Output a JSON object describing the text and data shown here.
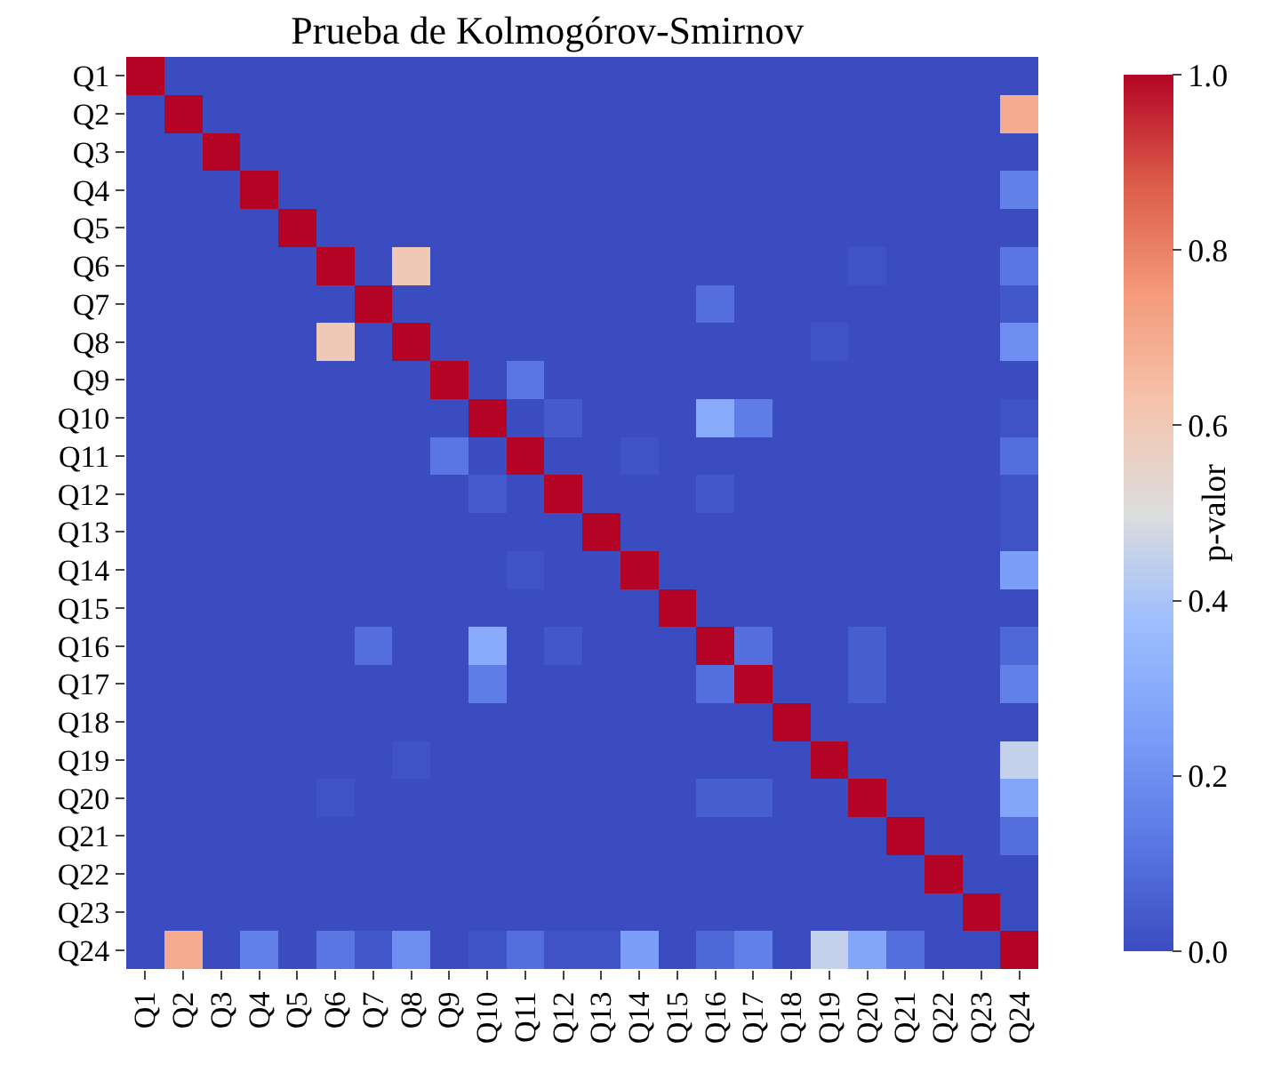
{
  "chart_data": {
    "type": "heatmap",
    "title": "Prueba de Kolmogórov-Smirnov",
    "clabel": "p-valor",
    "categories": [
      "Q1",
      "Q2",
      "Q3",
      "Q4",
      "Q5",
      "Q6",
      "Q7",
      "Q8",
      "Q9",
      "Q10",
      "Q11",
      "Q12",
      "Q13",
      "Q14",
      "Q15",
      "Q16",
      "Q17",
      "Q18",
      "Q19",
      "Q20",
      "Q21",
      "Q22",
      "Q23",
      "Q24"
    ],
    "y_categories": [
      "Q1",
      "Q2",
      "Q3",
      "Q4",
      "Q5",
      "Q6",
      "Q7",
      "Q8",
      "Q9",
      "Q10",
      "Q11",
      "Q12",
      "Q13",
      "Q14",
      "Q15",
      "Q16",
      "Q17",
      "Q18",
      "Q19",
      "Q20",
      "Q21",
      "Q22",
      "Q23",
      "Q24"
    ],
    "cells": [
      [
        1,
        0,
        0,
        0,
        0,
        0,
        0,
        0,
        0,
        0,
        0,
        0,
        0,
        0,
        0,
        0,
        0,
        0,
        0,
        0,
        0,
        0,
        0,
        0
      ],
      [
        0,
        1,
        0,
        0,
        0,
        0,
        0,
        0,
        0,
        0,
        0,
        0,
        0,
        0,
        0,
        0,
        0,
        0,
        0,
        0,
        0,
        0,
        0,
        0.7
      ],
      [
        0,
        0,
        1,
        0,
        0,
        0,
        0,
        0,
        0,
        0,
        0,
        0,
        0,
        0,
        0,
        0,
        0,
        0,
        0,
        0,
        0,
        0,
        0,
        0
      ],
      [
        0,
        0,
        0,
        1,
        0,
        0,
        0,
        0,
        0,
        0,
        0,
        0,
        0,
        0,
        0,
        0,
        0,
        0,
        0,
        0,
        0,
        0,
        0,
        0.15
      ],
      [
        0,
        0,
        0,
        0,
        1,
        0,
        0,
        0,
        0,
        0,
        0,
        0,
        0,
        0,
        0,
        0,
        0,
        0,
        0,
        0,
        0,
        0,
        0,
        0
      ],
      [
        0,
        0,
        0,
        0,
        0,
        1,
        0,
        0.6,
        0,
        0,
        0,
        0,
        0,
        0,
        0,
        0,
        0,
        0,
        0,
        0.02,
        0,
        0,
        0,
        0.12
      ],
      [
        0,
        0,
        0,
        0,
        0,
        0,
        1,
        0,
        0,
        0,
        0,
        0,
        0,
        0,
        0,
        0.1,
        0,
        0,
        0,
        0,
        0,
        0,
        0,
        0.03
      ],
      [
        0,
        0,
        0,
        0,
        0,
        0.6,
        0,
        1,
        0,
        0,
        0,
        0,
        0,
        0,
        0,
        0,
        0,
        0,
        0.02,
        0,
        0,
        0,
        0,
        0.2
      ],
      [
        0,
        0,
        0,
        0,
        0,
        0,
        0,
        0,
        1,
        0,
        0.12,
        0,
        0,
        0,
        0,
        0,
        0,
        0,
        0,
        0,
        0,
        0,
        0,
        0
      ],
      [
        0,
        0,
        0,
        0,
        0,
        0,
        0,
        0,
        0,
        1,
        0,
        0.04,
        0,
        0,
        0,
        0.3,
        0.14,
        0,
        0,
        0,
        0,
        0,
        0,
        0.02
      ],
      [
        0,
        0,
        0,
        0,
        0,
        0,
        0,
        0,
        0.12,
        0,
        1,
        0,
        0,
        0.02,
        0,
        0,
        0,
        0,
        0,
        0,
        0,
        0,
        0,
        0.1
      ],
      [
        0,
        0,
        0,
        0,
        0,
        0,
        0,
        0,
        0,
        0.04,
        0,
        1,
        0,
        0,
        0,
        0.03,
        0,
        0,
        0,
        0,
        0,
        0,
        0,
        0.02
      ],
      [
        0,
        0,
        0,
        0,
        0,
        0,
        0,
        0,
        0,
        0,
        0,
        0,
        1,
        0,
        0,
        0,
        0,
        0,
        0,
        0,
        0,
        0,
        0,
        0.02
      ],
      [
        0,
        0,
        0,
        0,
        0,
        0,
        0,
        0,
        0,
        0,
        0.02,
        0,
        0,
        1,
        0,
        0,
        0,
        0,
        0,
        0,
        0,
        0,
        0,
        0.25
      ],
      [
        0,
        0,
        0,
        0,
        0,
        0,
        0,
        0,
        0,
        0,
        0,
        0,
        0,
        0,
        1,
        0,
        0,
        0,
        0,
        0,
        0,
        0,
        0,
        0
      ],
      [
        0,
        0,
        0,
        0,
        0,
        0,
        0.1,
        0,
        0,
        0.3,
        0,
        0.03,
        0,
        0,
        0,
        1,
        0.1,
        0,
        0,
        0.05,
        0,
        0,
        0,
        0.08
      ],
      [
        0,
        0,
        0,
        0,
        0,
        0,
        0,
        0,
        0,
        0.14,
        0,
        0,
        0,
        0,
        0,
        0.1,
        1,
        0,
        0,
        0.05,
        0,
        0,
        0,
        0.15
      ],
      [
        0,
        0,
        0,
        0,
        0,
        0,
        0,
        0,
        0,
        0,
        0,
        0,
        0,
        0,
        0,
        0,
        0,
        1,
        0,
        0,
        0,
        0,
        0,
        0
      ],
      [
        0,
        0,
        0,
        0,
        0,
        0,
        0,
        0.02,
        0,
        0,
        0,
        0,
        0,
        0,
        0,
        0,
        0,
        0,
        1,
        0,
        0,
        0,
        0,
        0.45
      ],
      [
        0,
        0,
        0,
        0,
        0,
        0.02,
        0,
        0,
        0,
        0,
        0,
        0,
        0,
        0,
        0,
        0.05,
        0.05,
        0,
        0,
        1,
        0,
        0,
        0,
        0.28
      ],
      [
        0,
        0,
        0,
        0,
        0,
        0,
        0,
        0,
        0,
        0,
        0,
        0,
        0,
        0,
        0,
        0,
        0,
        0,
        0,
        0,
        1,
        0,
        0,
        0.1
      ],
      [
        0,
        0,
        0,
        0,
        0,
        0,
        0,
        0,
        0,
        0,
        0,
        0,
        0,
        0,
        0,
        0,
        0,
        0,
        0,
        0,
        0,
        1,
        0,
        0
      ],
      [
        0,
        0,
        0,
        0,
        0,
        0,
        0,
        0,
        0,
        0,
        0,
        0,
        0,
        0,
        0,
        0,
        0,
        0,
        0,
        0,
        0,
        0,
        1,
        0
      ],
      [
        0,
        0.7,
        0,
        0.15,
        0,
        0.12,
        0.03,
        0.2,
        0,
        0.02,
        0.1,
        0.02,
        0.02,
        0.25,
        0,
        0.08,
        0.15,
        0,
        0.45,
        0.28,
        0.1,
        0,
        0,
        1
      ]
    ],
    "clim": [
      0,
      1
    ],
    "cticks": [
      {
        "value": 0,
        "label": "0.0"
      },
      0.2,
      0.4,
      0.6,
      0.8,
      {
        "value": 1,
        "label": "1.0"
      }
    ]
  }
}
